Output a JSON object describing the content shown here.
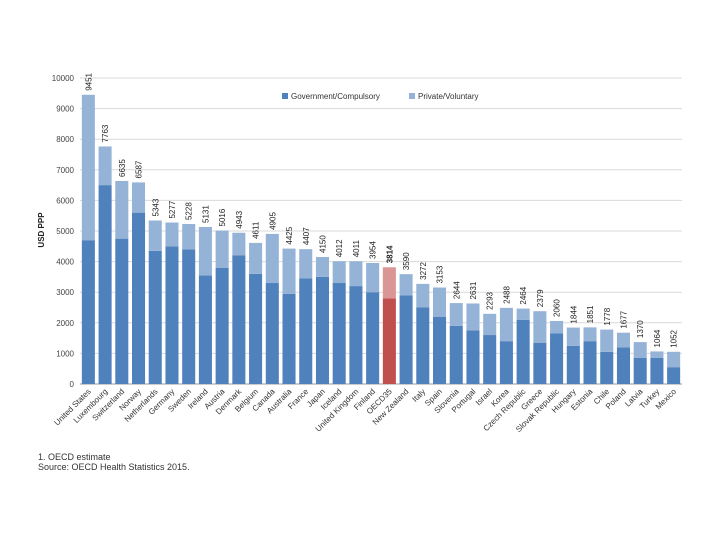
{
  "chart_data": {
    "type": "bar",
    "stacked": true,
    "title": "",
    "xlabel": "",
    "ylabel": "USD PPP",
    "ylim": [
      0,
      10000
    ],
    "yticks": [
      0,
      1000,
      2000,
      3000,
      4000,
      5000,
      6000,
      7000,
      8000,
      9000,
      10000
    ],
    "legend": [
      "Government/Compulsory",
      "Private/Voluntary"
    ],
    "legend_position": "top-right",
    "colors": {
      "government": "#4f81bd",
      "private": "#95b3d7",
      "oecd_government": "#c0504d",
      "oecd_private": "#d99694"
    },
    "highlight_category": "OECD35",
    "categories": [
      "United States",
      "Luxembourg",
      "Switzerland",
      "Norway",
      "Netherlands",
      "Germany",
      "Sweden",
      "Ireland",
      "Austria",
      "Denmark",
      "Belgium",
      "Canada",
      "Australia",
      "France",
      "Japan",
      "Iceland",
      "United Kingdom",
      "Finland",
      "OECD35",
      "New Zealand",
      "Italy",
      "Spain",
      "Slovenia",
      "Portugal",
      "Israel",
      "Korea",
      "Czech Republic",
      "Greece",
      "Slovak Republic",
      "Hungary",
      "Estonia",
      "Chile",
      "Poland",
      "Latvia",
      "Turkey",
      "Mexico"
    ],
    "series": [
      {
        "name": "Government/Compulsory",
        "values": [
          4700,
          6500,
          4750,
          5600,
          4350,
          4500,
          4400,
          3550,
          3800,
          4200,
          3600,
          3300,
          2950,
          3450,
          3500,
          3300,
          3200,
          3000,
          2800,
          2900,
          2500,
          2200,
          1900,
          1750,
          1600,
          1400,
          2100,
          1350,
          1650,
          1250,
          1400,
          1050,
          1200,
          850,
          850,
          550
        ]
      },
      {
        "name": "Private/Voluntary",
        "values": [
          4751,
          1263,
          1885,
          987,
          993,
          777,
          828,
          1581,
          1216,
          743,
          1011,
          1605,
          1475,
          957,
          650,
          712,
          811,
          954,
          1014,
          690,
          772,
          953,
          744,
          881,
          693,
          1088,
          364,
          1029,
          410,
          594,
          451,
          728,
          477,
          520,
          214,
          502
        ]
      }
    ],
    "totals_labels": [
      "9451",
      "7763",
      "6635",
      "6587",
      "5343",
      "5277",
      "5228",
      "5131",
      "5016",
      "4943",
      "4611",
      "4905",
      "4425",
      "4407",
      "4150",
      "4012",
      "4011",
      "3954",
      "3814",
      "3590",
      "3272",
      "3153",
      "2644",
      "2631",
      "2293",
      "2488",
      "2464",
      "2379",
      "2060",
      "1844",
      "1851",
      "1778",
      "1677",
      "1370",
      "1064",
      "1052"
    ]
  },
  "notes": {
    "footnote": "1. OECD estimate",
    "source": "Source: OECD Health Statistics 2015."
  }
}
